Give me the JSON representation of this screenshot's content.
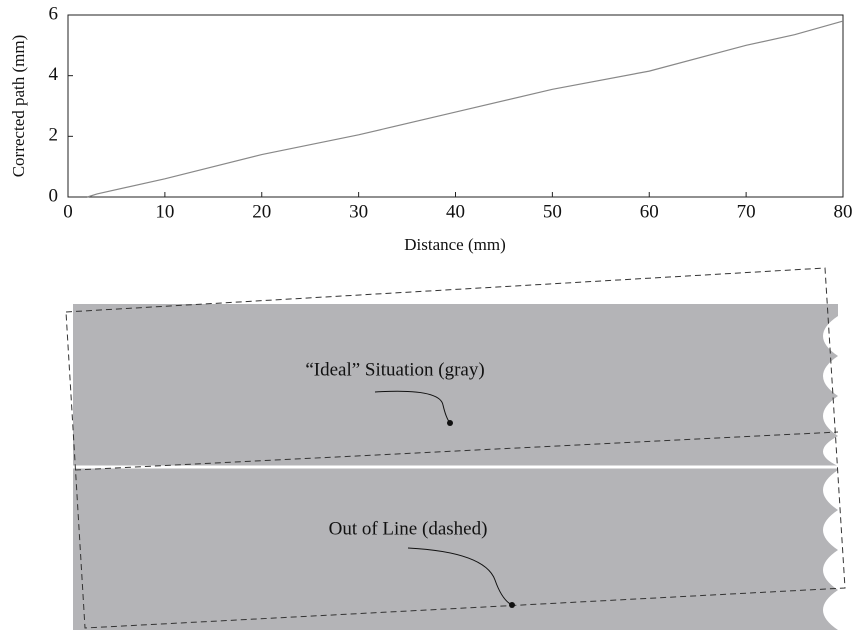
{
  "chart_data": {
    "type": "line",
    "x_label": "Distance (mm)",
    "y_label": "Corrected path (mm)",
    "xlim": [
      0,
      80
    ],
    "ylim": [
      0,
      6
    ],
    "xticks": [
      0,
      10,
      20,
      30,
      40,
      50,
      60,
      70,
      80
    ],
    "yticks": [
      0,
      2,
      4,
      6
    ],
    "series": [
      {
        "color": "#888888",
        "x": [
          2,
          3,
          10,
          20,
          30,
          40,
          50,
          60,
          70,
          75,
          80
        ],
        "values": [
          0,
          0.1,
          0.6,
          1.4,
          2.05,
          2.8,
          3.55,
          4.15,
          5.0,
          5.35,
          5.8
        ]
      }
    ]
  },
  "diagram": {
    "labels": [
      "“Ideal” Situation (gray)",
      "Out of Line (dashed)"
    ]
  }
}
